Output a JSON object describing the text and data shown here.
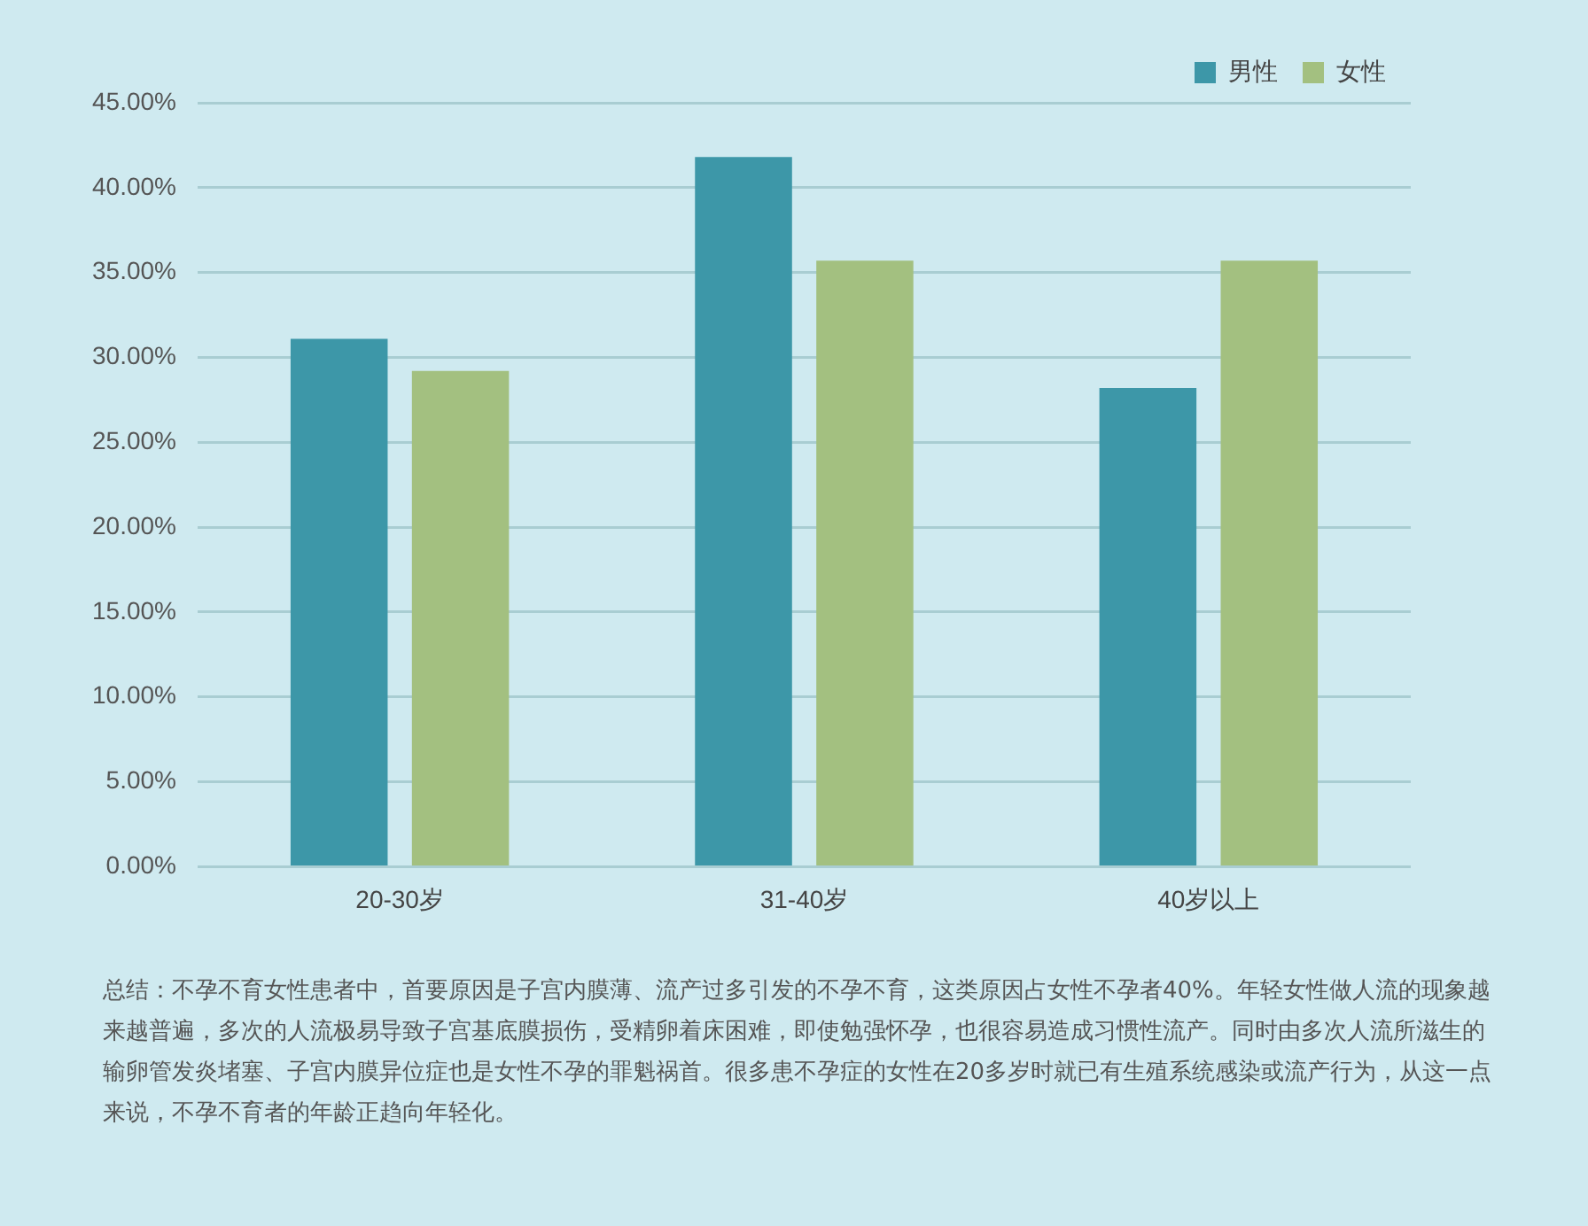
{
  "chart_data": {
    "type": "bar",
    "categories": [
      "20-30岁",
      "31-40岁",
      "40岁以上"
    ],
    "series": [
      {
        "name": "男性",
        "color": "#3d97a8",
        "values": [
          31.1,
          41.8,
          28.2
        ]
      },
      {
        "name": "女性",
        "color": "#a3c080",
        "values": [
          29.2,
          35.7,
          35.7
        ]
      }
    ],
    "ylim": [
      0,
      45
    ],
    "yticks": [
      {
        "value": 0,
        "label": "0.00%"
      },
      {
        "value": 5,
        "label": "5.00%"
      },
      {
        "value": 10,
        "label": "10.00%"
      },
      {
        "value": 15,
        "label": "15.00%"
      },
      {
        "value": 20,
        "label": "20.00%"
      },
      {
        "value": 25,
        "label": "25.00%"
      },
      {
        "value": 30,
        "label": "30.00%"
      },
      {
        "value": 35,
        "label": "35.00%"
      },
      {
        "value": 40,
        "label": "40.00%"
      },
      {
        "value": 45,
        "label": "45.00%"
      }
    ],
    "grid": "y",
    "legend": "top right",
    "annotations": [
      "总结：不孕不育女性患者中，首要原因是子宫内膜薄、流产过多引发的不孕不育，这类原因占女性不孕者40%。年轻女性做人流的现象越来越普遍，多次的人流极易导致子宫基底膜损伤，受精卵着床困难，即使勉强怀孕，也很容易造成习惯性流产。同时由多次人流所滋生的输卵管发炎堵塞、子宫内膜异位症也是女性不孕的罪魁祸首。很多患不孕症的女性在20多岁时就已有生殖系统感染或流产行为，从这一点来说，不孕不育者的年龄正趋向年轻化。"
    ]
  }
}
